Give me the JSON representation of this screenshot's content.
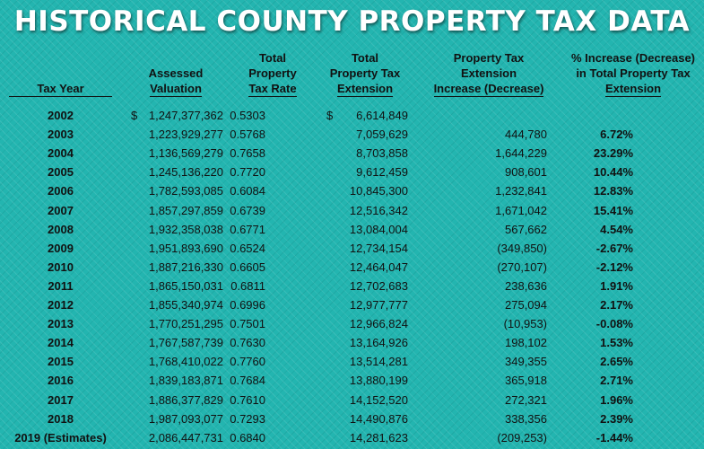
{
  "title": "HISTORICAL COUNTY PROPERTY TAX DATA",
  "headers": {
    "tax_year": [
      "Tax Year"
    ],
    "assessed": [
      "Assessed",
      "Valuation"
    ],
    "rate": [
      "Total",
      "Property",
      "Tax Rate"
    ],
    "extension": [
      "Total",
      "Property Tax",
      "Extension"
    ],
    "increase": [
      "Property Tax",
      "Extension",
      "Increase (Decrease)"
    ],
    "pct": [
      "% Increase (Decrease)",
      "in Total Property Tax",
      "Extension"
    ]
  },
  "currency_symbol": "$",
  "rows": [
    {
      "year": "2002",
      "assessed": "1,247,377,362",
      "rate": "0.5303",
      "extension": "6,614,849",
      "increase": "",
      "pct": ""
    },
    {
      "year": "2003",
      "assessed": "1,223,929,277",
      "rate": "0.5768",
      "extension": "7,059,629",
      "increase": "444,780",
      "pct": "6.72%"
    },
    {
      "year": "2004",
      "assessed": "1,136,569,279",
      "rate": "0.7658",
      "extension": "8,703,858",
      "increase": "1,644,229",
      "pct": "23.29%"
    },
    {
      "year": "2005",
      "assessed": "1,245,136,220",
      "rate": "0.7720",
      "extension": "9,612,459",
      "increase": "908,601",
      "pct": "10.44%"
    },
    {
      "year": "2006",
      "assessed": "1,782,593,085",
      "rate": "0.6084",
      "extension": "10,845,300",
      "increase": "1,232,841",
      "pct": "12.83%"
    },
    {
      "year": "2007",
      "assessed": "1,857,297,859",
      "rate": "0.6739",
      "extension": "12,516,342",
      "increase": "1,671,042",
      "pct": "15.41%"
    },
    {
      "year": "2008",
      "assessed": "1,932,358,038",
      "rate": "0.6771",
      "extension": "13,084,004",
      "increase": "567,662",
      "pct": "4.54%"
    },
    {
      "year": "2009",
      "assessed": "1,951,893,690",
      "rate": "0.6524",
      "extension": "12,734,154",
      "increase": "(349,850)",
      "pct": "-2.67%"
    },
    {
      "year": "2010",
      "assessed": "1,887,216,330",
      "rate": "0.6605",
      "extension": "12,464,047",
      "increase": "(270,107)",
      "pct": "-2.12%"
    },
    {
      "year": "2011",
      "assessed": "1,865,150,031",
      "rate": "0.6811",
      "extension": "12,702,683",
      "increase": "238,636",
      "pct": "1.91%"
    },
    {
      "year": "2012",
      "assessed": "1,855,340,974",
      "rate": "0.6996",
      "extension": "12,977,777",
      "increase": "275,094",
      "pct": "2.17%"
    },
    {
      "year": "2013",
      "assessed": "1,770,251,295",
      "rate": "0.7501",
      "extension": "12,966,824",
      "increase": "(10,953)",
      "pct": "-0.08%"
    },
    {
      "year": "2014",
      "assessed": "1,767,587,739",
      "rate": "0.7630",
      "extension": "13,164,926",
      "increase": "198,102",
      "pct": "1.53%"
    },
    {
      "year": "2015",
      "assessed": "1,768,410,022",
      "rate": "0.7760",
      "extension": "13,514,281",
      "increase": "349,355",
      "pct": "2.65%"
    },
    {
      "year": "2016",
      "assessed": "1,839,183,871",
      "rate": "0.7684",
      "extension": "13,880,199",
      "increase": "365,918",
      "pct": "2.71%"
    },
    {
      "year": "2017",
      "assessed": "1,886,377,829",
      "rate": "0.7610",
      "extension": "14,152,520",
      "increase": "272,321",
      "pct": "1.96%"
    },
    {
      "year": "2018",
      "assessed": "1,987,093,077",
      "rate": "0.7293",
      "extension": "14,490,876",
      "increase": "338,356",
      "pct": "2.39%"
    },
    {
      "year": "2019 (Estimates)",
      "assessed": "2,086,447,731",
      "rate": "0.6840",
      "extension": "14,281,623",
      "increase": "(209,253)",
      "pct": "-1.44%"
    }
  ]
}
